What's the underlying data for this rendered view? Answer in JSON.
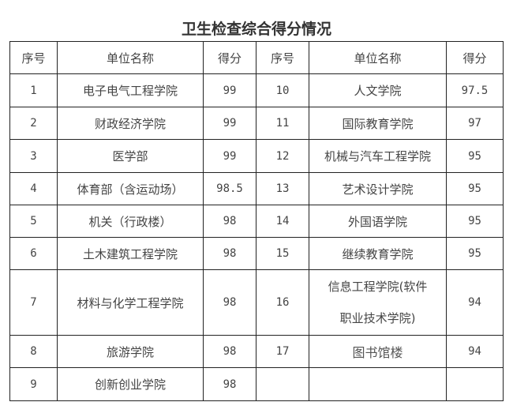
{
  "title": "卫生检查综合得分情况",
  "headers": [
    "序号",
    "单位名称",
    "得分",
    "序号",
    "单位名称",
    "得分"
  ],
  "rows": [
    {
      "left": {
        "no": "1",
        "name": "电子电气工程学院",
        "score": "99"
      },
      "right": {
        "no": "10",
        "name": "人文学院",
        "score": "97.5"
      }
    },
    {
      "left": {
        "no": "2",
        "name": "财政经济学院",
        "score": "99"
      },
      "right": {
        "no": "11",
        "name": "国际教育学院",
        "score": "97"
      }
    },
    {
      "left": {
        "no": "3",
        "name": "医学部",
        "score": "99"
      },
      "right": {
        "no": "12",
        "name": "机械与汽车工程学院",
        "score": "95"
      }
    },
    {
      "left": {
        "no": "4",
        "name": "体育部（含运动场）",
        "score": "98.5"
      },
      "right": {
        "no": "13",
        "name": "艺术设计学院",
        "score": "95"
      }
    },
    {
      "left": {
        "no": "5",
        "name": "机关（行政楼）",
        "score": "98"
      },
      "right": {
        "no": "14",
        "name": "外国语学院",
        "score": "95"
      }
    },
    {
      "left": {
        "no": "6",
        "name": "土木建筑工程学院",
        "score": "98"
      },
      "right": {
        "no": "15",
        "name": "继续教育学院",
        "score": "95"
      }
    },
    {
      "left": {
        "no": "7",
        "name": "材料与化学工程学院",
        "score": "98"
      },
      "right": {
        "no": "16",
        "name_line1": "信息工程学院(软件",
        "name_line2": "职业技术学院)",
        "score": "94"
      }
    },
    {
      "left": {
        "no": "8",
        "name": "旅游学院",
        "score": "98"
      },
      "right": {
        "no": "17",
        "name": "图书馆楼",
        "score": "94"
      }
    },
    {
      "left": {
        "no": "9",
        "name": "创新创业学院",
        "score": "98"
      }
    }
  ]
}
